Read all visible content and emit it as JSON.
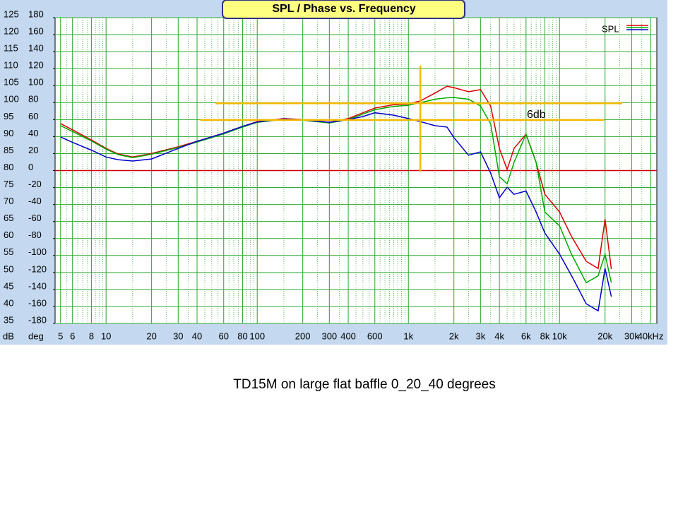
{
  "chart_data": {
    "type": "line",
    "title": "SPL / Phase vs. Frequency",
    "caption": "TD15M on large flat baffle  0_20_40  degrees",
    "y_label": "dB",
    "y2_label": "deg",
    "legend_label": "SPL",
    "annotation": "6db",
    "log_x": true,
    "grid": true,
    "legend": "top-right",
    "xlim": [
      4.6,
      44000
    ],
    "xticks": [
      5,
      6,
      8,
      10,
      20,
      30,
      40,
      60,
      80,
      100,
      200,
      300,
      400,
      600,
      {
        "value": 1000,
        "label": "1k"
      },
      {
        "value": 2000,
        "label": "2k"
      },
      {
        "value": 3000,
        "label": "3k"
      },
      {
        "value": 4000,
        "label": "4k"
      },
      {
        "value": 6000,
        "label": "6k"
      },
      {
        "value": 8000,
        "label": "8k"
      },
      {
        "value": 10000,
        "label": "10k"
      },
      {
        "value": 20000,
        "label": "20k"
      },
      {
        "value": 30000,
        "label": "30k"
      },
      {
        "value": 40000,
        "label": "40kHz"
      }
    ],
    "ylim": [
      35,
      125
    ],
    "yticks": [
      35,
      40,
      45,
      50,
      55,
      60,
      65,
      70,
      75,
      80,
      85,
      90,
      95,
      100,
      105,
      110,
      115,
      120,
      125
    ],
    "y2lim": [
      -180,
      180
    ],
    "y2ticks": [
      -180,
      -160,
      -140,
      -120,
      -100,
      -80,
      -60,
      -40,
      -20,
      0,
      20,
      40,
      60,
      80,
      100,
      120,
      140,
      160,
      180
    ],
    "zero_line": {
      "y": 80,
      "color": "#cc0000"
    },
    "reference_lines": [
      {
        "x": [
          53,
          26000
        ],
        "y": [
          99.8,
          99.8
        ],
        "color": "#f5b800"
      },
      {
        "x": [
          42,
          19700
        ],
        "y": [
          94.9,
          94.9
        ],
        "color": "#f5b800"
      },
      {
        "x": [
          1200,
          1200
        ],
        "y": [
          79.7,
          110.9
        ],
        "color": "#f5b800"
      }
    ],
    "x": [
      5,
      6,
      8,
      10,
      12,
      15,
      20,
      30,
      40,
      60,
      80,
      100,
      150,
      200,
      300,
      400,
      500,
      600,
      800,
      1000,
      1200,
      1500,
      1800,
      2000,
      2500,
      3000,
      3500,
      4000,
      4500,
      5000,
      6000,
      7000,
      8000,
      10000,
      12000,
      15000,
      18000,
      20000,
      22000
    ],
    "series": [
      {
        "color": "#dd0000",
        "values": [
          93.8,
          92,
          89,
          86.5,
          84.9,
          84,
          85,
          87,
          88.6,
          91,
          93,
          94.4,
          95.3,
          95,
          94.2,
          95.3,
          97,
          98.4,
          99.4,
          99.6,
          100.5,
          102.8,
          104.8,
          104.4,
          103.2,
          103.8,
          99,
          86.5,
          80.3,
          86.5,
          90.7,
          82.4,
          73,
          67.8,
          60.6,
          53.3,
          51.2,
          65.7,
          51
        ]
      },
      {
        "color": "#00aa00",
        "values": [
          93.2,
          91.5,
          88.7,
          86.3,
          84.7,
          83.8,
          84.8,
          86.8,
          88.4,
          90.8,
          92.8,
          94.2,
          95.1,
          94.8,
          94,
          95,
          96.6,
          97.9,
          98.9,
          99.2,
          100,
          101,
          101.4,
          101.5,
          101,
          99,
          93.8,
          78.2,
          76.1,
          82.4,
          90.7,
          82.4,
          67.8,
          63.7,
          55.4,
          47,
          49,
          55.4,
          47
        ]
      },
      {
        "color": "#0000cc",
        "values": [
          89.9,
          88.3,
          86,
          84,
          83.2,
          82.8,
          83.4,
          86.5,
          88.6,
          91,
          93,
          94.3,
          95.2,
          94.9,
          94.2,
          95,
          95.9,
          97,
          96.3,
          95.3,
          94.4,
          93.2,
          92.8,
          89.7,
          84.5,
          85.5,
          79.3,
          72,
          75.1,
          73,
          74,
          67.8,
          61.6,
          55.4,
          49.1,
          40.8,
          38.7,
          51.2,
          42.9
        ]
      }
    ]
  }
}
